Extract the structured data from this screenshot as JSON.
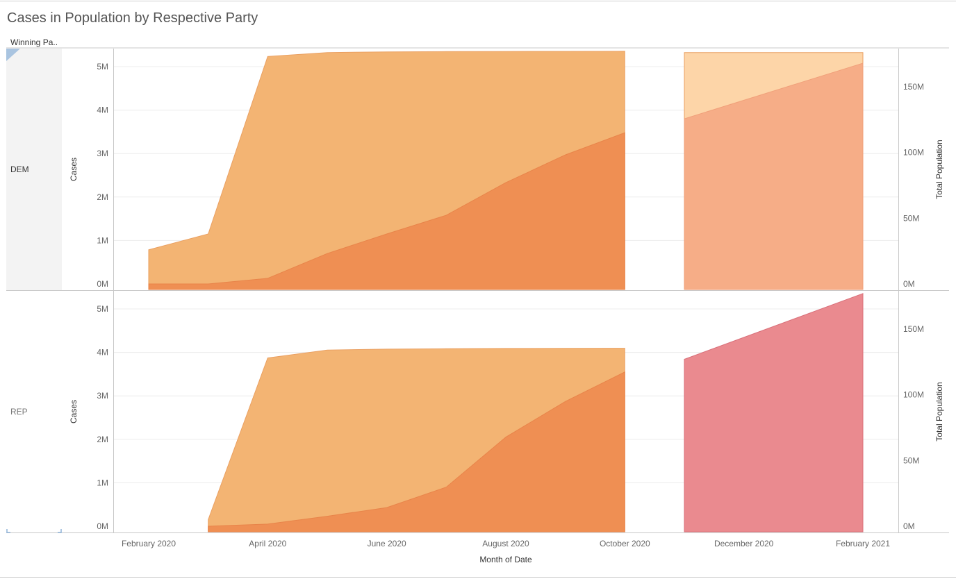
{
  "header": {
    "title": "Cases in Population by Respective Party",
    "row_field_label": "Winning Pa..",
    "x_axis_title": "Month of Date"
  },
  "colors": {
    "population_area": "#f3b473",
    "population_area_light": "#fdd5a8",
    "cases_area": "#ef8f53",
    "cases_area_light": "#f6ad87",
    "rep_late_population": "#ea8a8f",
    "gridline": "#ececec",
    "axis_line": "#c8c8c8"
  },
  "chart_data": {
    "type": "area",
    "x_ticks": [
      "February 2020",
      "April 2020",
      "June 2020",
      "August 2020",
      "October 2020",
      "December 2020",
      "February 2021"
    ],
    "left_axis": {
      "title": "Cases",
      "ticks": [
        "0M",
        "1M",
        "2M",
        "3M",
        "4M",
        "5M"
      ],
      "range": [
        0,
        5.5
      ],
      "unit": "M"
    },
    "right_axis": {
      "title": "Total Population",
      "ticks": [
        "0M",
        "50M",
        "100M",
        "150M"
      ],
      "range": [
        0,
        185
      ],
      "unit": "M"
    },
    "panels": [
      {
        "row": "DEM",
        "segments": [
          {
            "population_M": [
              [
                "2020-02",
                26
              ],
              [
                "2020-03",
                38
              ],
              [
                "2020-04",
                173
              ],
              [
                "2020-05",
                176
              ],
              [
                "2020-06",
                176.5
              ],
              [
                "2020-07",
                176.7
              ],
              [
                "2020-08",
                176.8
              ],
              [
                "2020-09",
                176.9
              ],
              [
                "2020-10",
                177
              ]
            ],
            "cases_M": [
              [
                "2020-02",
                0
              ],
              [
                "2020-03",
                0
              ],
              [
                "2020-04",
                0.13
              ],
              [
                "2020-05",
                0.7
              ],
              [
                "2020-06",
                1.15
              ],
              [
                "2020-07",
                1.58
              ],
              [
                "2020-08",
                2.33
              ],
              [
                "2020-09",
                2.97
              ],
              [
                "2020-10",
                3.48
              ]
            ]
          },
          {
            "population_M": [
              [
                "2020-11",
                176
              ],
              [
                "2021-02",
                176
              ]
            ],
            "cases_M": [
              [
                "2020-11",
                3.8
              ],
              [
                "2021-02",
                5.08
              ]
            ]
          }
        ]
      },
      {
        "row": "REP",
        "segments": [
          {
            "population_M": [
              [
                "2020-03",
                5
              ],
              [
                "2020-04",
                128
              ],
              [
                "2020-05",
                134
              ],
              [
                "2020-06",
                134.7
              ],
              [
                "2020-07",
                135
              ],
              [
                "2020-08",
                135.2
              ],
              [
                "2020-09",
                135.3
              ],
              [
                "2020-10",
                135.4
              ]
            ],
            "cases_M": [
              [
                "2020-03",
                0
              ],
              [
                "2020-04",
                0.05
              ],
              [
                "2020-05",
                0.23
              ],
              [
                "2020-06",
                0.43
              ],
              [
                "2020-07",
                0.9
              ],
              [
                "2020-08",
                2.05
              ],
              [
                "2020-09",
                2.87
              ],
              [
                "2020-10",
                3.55
              ]
            ]
          },
          {
            "population_M": [
              [
                "2020-11",
                127
              ],
              [
                "2021-02",
                177
              ]
            ],
            "cases_M": [
              [
                "2020-11",
                3.8
              ],
              [
                "2021-02",
                3.8
              ]
            ]
          }
        ]
      }
    ]
  }
}
